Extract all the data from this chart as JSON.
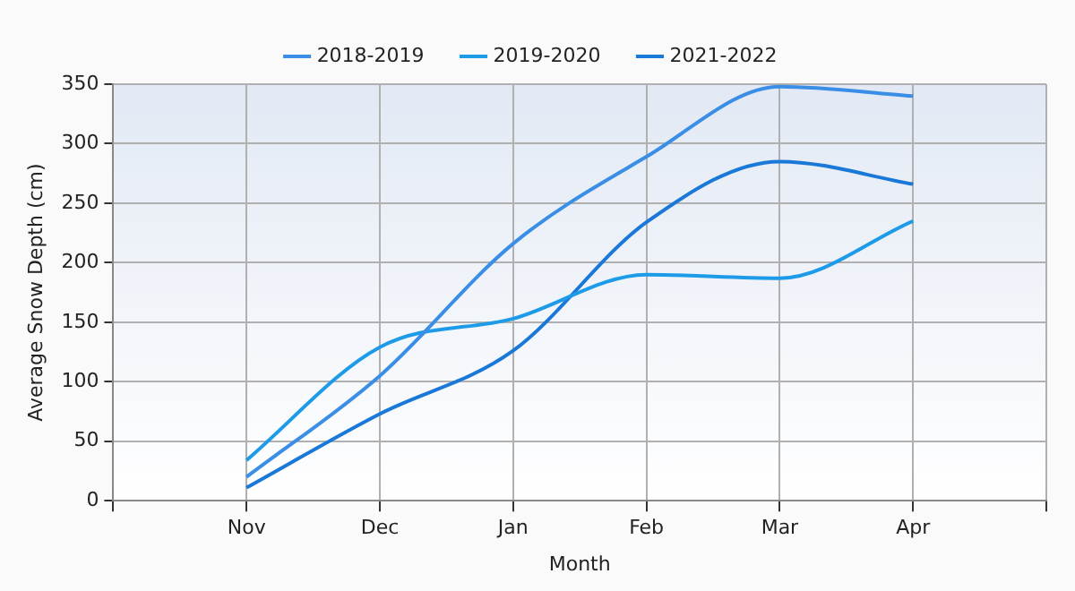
{
  "chart_data": {
    "type": "line",
    "xlabel": "Month",
    "ylabel": "Average Snow Depth (cm)",
    "categories": [
      null,
      "Nov",
      "Dec",
      "Jan",
      "Feb",
      "Mar",
      "Apr",
      null
    ],
    "series": [
      {
        "name": "2018-2019",
        "color": "#3a8ee6",
        "values": [
          null,
          20,
          105,
          216,
          289,
          348,
          340,
          null
        ]
      },
      {
        "name": "2019-2020",
        "color": "#1e9be8",
        "values": [
          null,
          34,
          129,
          153,
          190,
          187,
          235,
          null
        ]
      },
      {
        "name": "2021-2022",
        "color": "#1a78d8",
        "values": [
          null,
          11,
          73,
          126,
          234,
          285,
          266,
          null
        ]
      }
    ],
    "ylim": [
      0,
      350
    ],
    "yticks": [
      0,
      50,
      100,
      150,
      200,
      250,
      300,
      350
    ],
    "grid": true,
    "legend": "top",
    "marker": "none",
    "line_style": "solid"
  }
}
